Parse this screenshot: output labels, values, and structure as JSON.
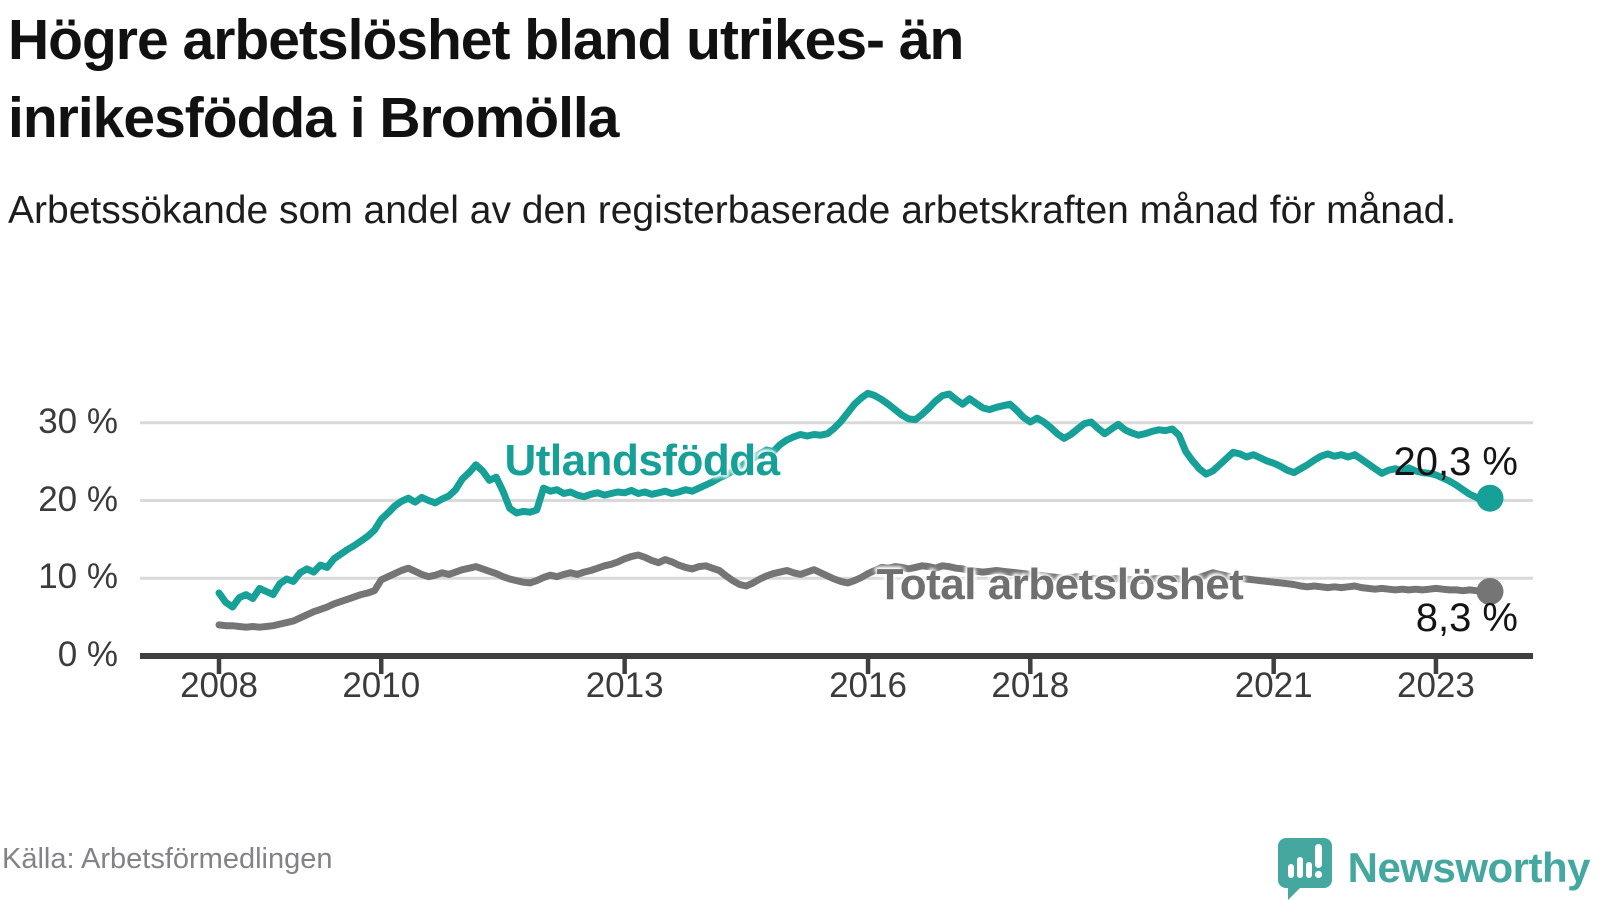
{
  "header": {
    "title": "Högre arbetslöshet bland utrikes- än inrikesfödda i Bromölla",
    "subtitle": "Arbetssökande som andel av den registerbaserade arbetskraften månad för månad."
  },
  "footer": {
    "source": "Källa: Arbetsförmedlingen",
    "brand": "Newsworthy"
  },
  "colors": {
    "accent_teal": "#16A098",
    "logo_teal": "#45A8A0",
    "line_gray": "#757575",
    "label_gray": "#6F6F6F",
    "axis_dark": "#3f3f3f",
    "gridline": "#d9d9d9",
    "tick_text": "#3b3b3b",
    "source_text": "#838387"
  },
  "chart_data": {
    "type": "line",
    "title": "Högre arbetslöshet bland utrikes- än inrikesfödda i Bromölla",
    "subtitle": "Arbetssökande som andel av den registerbaserade arbetskraften månad för månad.",
    "xlabel": "",
    "ylabel": "",
    "x_start_year": 2008,
    "x_frequency": "monthly",
    "x_end": "2023-09",
    "xlim": [
      2007.0,
      2024.2
    ],
    "ylim": [
      0,
      36
    ],
    "grid": true,
    "legend_position": "inline-labels",
    "y_ticks": [
      {
        "value": 0,
        "label": "0 %"
      },
      {
        "value": 10,
        "label": "10 %"
      },
      {
        "value": 20,
        "label": "20 %"
      },
      {
        "value": 30,
        "label": "30 %"
      }
    ],
    "x_ticks": [
      {
        "year": 2008,
        "label": "2008"
      },
      {
        "year": 2010,
        "label": "2010"
      },
      {
        "year": 2013,
        "label": "2013"
      },
      {
        "year": 2016,
        "label": "2016"
      },
      {
        "year": 2018,
        "label": "2018"
      },
      {
        "year": 2021,
        "label": "2021"
      },
      {
        "year": 2023,
        "label": "2023"
      }
    ],
    "series": [
      {
        "name": "Utlandsfödda",
        "color": "#16A098",
        "end_label": "20,3 %",
        "end_value": 20.3,
        "values": [
          8.1,
          6.9,
          6.3,
          7.5,
          7.9,
          7.4,
          8.7,
          8.3,
          7.9,
          9.3,
          9.9,
          9.6,
          10.7,
          11.2,
          10.8,
          11.7,
          11.4,
          12.5,
          13.1,
          13.7,
          14.2,
          14.8,
          15.4,
          16.2,
          17.6,
          18.4,
          19.3,
          19.9,
          20.3,
          19.8,
          20.4,
          20.0,
          19.7,
          20.2,
          20.6,
          21.4,
          22.8,
          23.6,
          24.6,
          23.8,
          22.6,
          23.0,
          21.2,
          19.0,
          18.4,
          18.6,
          18.5,
          18.8,
          21.6,
          21.2,
          21.4,
          20.9,
          21.1,
          20.7,
          20.5,
          20.8,
          21.0,
          20.7,
          20.9,
          21.1,
          21.0,
          21.3,
          20.9,
          21.1,
          20.8,
          21.0,
          21.2,
          20.9,
          21.1,
          21.4,
          21.2,
          21.6,
          22.0,
          22.4,
          22.9,
          23.3,
          23.8,
          24.3,
          24.9,
          25.4,
          26.0,
          26.5,
          26.3,
          27.2,
          27.8,
          28.2,
          28.5,
          28.3,
          28.5,
          28.4,
          28.6,
          29.3,
          30.2,
          31.3,
          32.4,
          33.2,
          33.8,
          33.5,
          33.0,
          32.4,
          31.7,
          31.0,
          30.5,
          30.4,
          31.1,
          31.9,
          32.8,
          33.5,
          33.7,
          33.0,
          32.4,
          33.1,
          32.5,
          31.9,
          31.7,
          32.0,
          32.2,
          32.4,
          31.6,
          30.7,
          30.1,
          30.6,
          30.1,
          29.4,
          28.6,
          28.0,
          28.5,
          29.2,
          29.9,
          30.1,
          29.3,
          28.6,
          29.2,
          29.8,
          29.1,
          28.7,
          28.4,
          28.6,
          28.9,
          29.1,
          29.0,
          29.2,
          28.4,
          26.3,
          25.1,
          24.1,
          23.4,
          23.8,
          24.6,
          25.4,
          26.2,
          26.0,
          25.6,
          25.9,
          25.5,
          25.1,
          24.8,
          24.4,
          23.9,
          23.6,
          24.1,
          24.6,
          25.2,
          25.7,
          26.0,
          25.7,
          25.9,
          25.6,
          25.9,
          25.3,
          24.7,
          24.1,
          23.5,
          23.9,
          24.1,
          23.8,
          24.2,
          23.8,
          23.6,
          23.5,
          23.3,
          22.9,
          22.5,
          22.0,
          21.4,
          20.8,
          20.4,
          19.8,
          20.3
        ]
      },
      {
        "name": "Total arbetslöshet",
        "color": "#757575",
        "end_label": "8,3 %",
        "end_value": 8.3,
        "values": [
          4.0,
          3.9,
          3.9,
          3.8,
          3.7,
          3.8,
          3.7,
          3.8,
          3.9,
          4.1,
          4.3,
          4.5,
          4.9,
          5.3,
          5.7,
          6.0,
          6.3,
          6.7,
          7.0,
          7.3,
          7.6,
          7.9,
          8.1,
          8.4,
          9.8,
          10.2,
          10.6,
          11.0,
          11.3,
          10.9,
          10.5,
          10.2,
          10.4,
          10.7,
          10.5,
          10.8,
          11.1,
          11.3,
          11.5,
          11.2,
          10.9,
          10.6,
          10.2,
          9.9,
          9.7,
          9.5,
          9.4,
          9.7,
          10.1,
          10.4,
          10.2,
          10.5,
          10.7,
          10.5,
          10.8,
          11.0,
          11.3,
          11.6,
          11.8,
          12.1,
          12.5,
          12.8,
          13.0,
          12.7,
          12.3,
          12.0,
          12.4,
          12.1,
          11.7,
          11.4,
          11.2,
          11.5,
          11.6,
          11.3,
          11.0,
          10.3,
          9.7,
          9.2,
          9.0,
          9.4,
          9.9,
          10.3,
          10.6,
          10.8,
          11.0,
          10.7,
          10.5,
          10.8,
          11.1,
          10.7,
          10.3,
          9.9,
          9.6,
          9.4,
          9.7,
          10.1,
          10.6,
          11.0,
          11.4,
          11.3,
          11.5,
          11.4,
          11.2,
          11.4,
          11.6,
          11.5,
          11.3,
          11.6,
          11.5,
          11.3,
          11.2,
          11.0,
          10.9,
          10.8,
          10.9,
          11.0,
          10.9,
          10.8,
          10.7,
          10.6,
          10.5,
          10.4,
          10.3,
          10.2,
          10.1,
          10.0,
          10.1,
          10.2,
          10.1,
          10.0,
          9.9,
          9.8,
          9.9,
          10.0,
          9.9,
          9.8,
          9.7,
          9.8,
          9.9,
          10.0,
          9.9,
          10.0,
          9.9,
          9.8,
          9.9,
          10.1,
          10.4,
          10.7,
          10.5,
          10.3,
          10.1,
          10.0,
          9.9,
          9.8,
          9.7,
          9.6,
          9.5,
          9.4,
          9.3,
          9.2,
          9.0,
          8.9,
          9.0,
          8.9,
          8.8,
          8.9,
          8.8,
          8.9,
          9.0,
          8.8,
          8.7,
          8.6,
          8.7,
          8.6,
          8.5,
          8.6,
          8.5,
          8.6,
          8.5,
          8.6,
          8.7,
          8.6,
          8.5,
          8.5,
          8.4,
          8.5,
          8.4,
          8.3,
          8.3
        ]
      }
    ]
  }
}
